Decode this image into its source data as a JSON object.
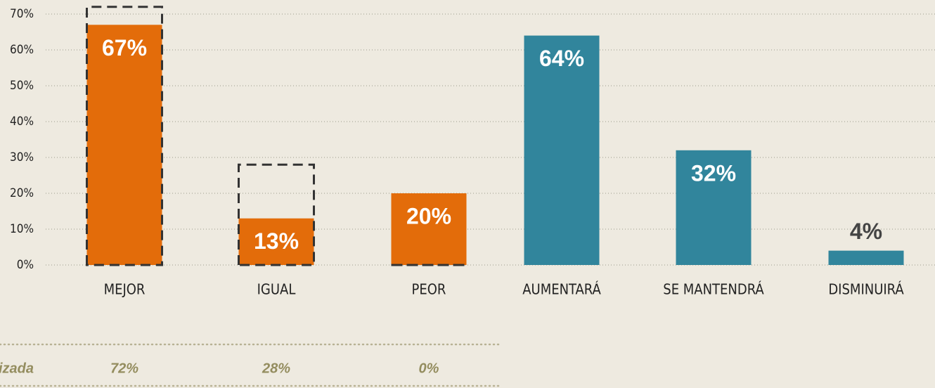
{
  "chart_data": {
    "type": "bar",
    "categories": [
      "MEJOR",
      "IGUAL",
      "PEOR",
      "AUMENTARÁ",
      "SE MANTENDRÁ",
      "DISMINUIRÁ"
    ],
    "values": [
      67,
      13,
      20,
      64,
      32,
      4
    ],
    "value_labels": [
      "67%",
      "13%",
      "20%",
      "64%",
      "32%",
      "4%"
    ],
    "colors": [
      "#e36c0a",
      "#e36c0a",
      "#e36c0a",
      "#31859c",
      "#31859c",
      "#31859c"
    ],
    "ylim": [
      0,
      70
    ],
    "yticks": [
      {
        "value": 0,
        "label": "0%"
      },
      {
        "value": 10,
        "label": "10%"
      },
      {
        "value": 20,
        "label": "20%"
      },
      {
        "value": 30,
        "label": "30%"
      },
      {
        "value": 40,
        "label": "40%"
      },
      {
        "value": 50,
        "label": "50%"
      },
      {
        "value": 60,
        "label": "60%"
      },
      {
        "value": 70,
        "label": "70%"
      }
    ],
    "grid": true,
    "reference": {
      "row_label": "izada",
      "values": [
        72,
        28,
        0
      ],
      "value_labels": [
        "72%",
        "28%",
        "0%"
      ]
    }
  }
}
